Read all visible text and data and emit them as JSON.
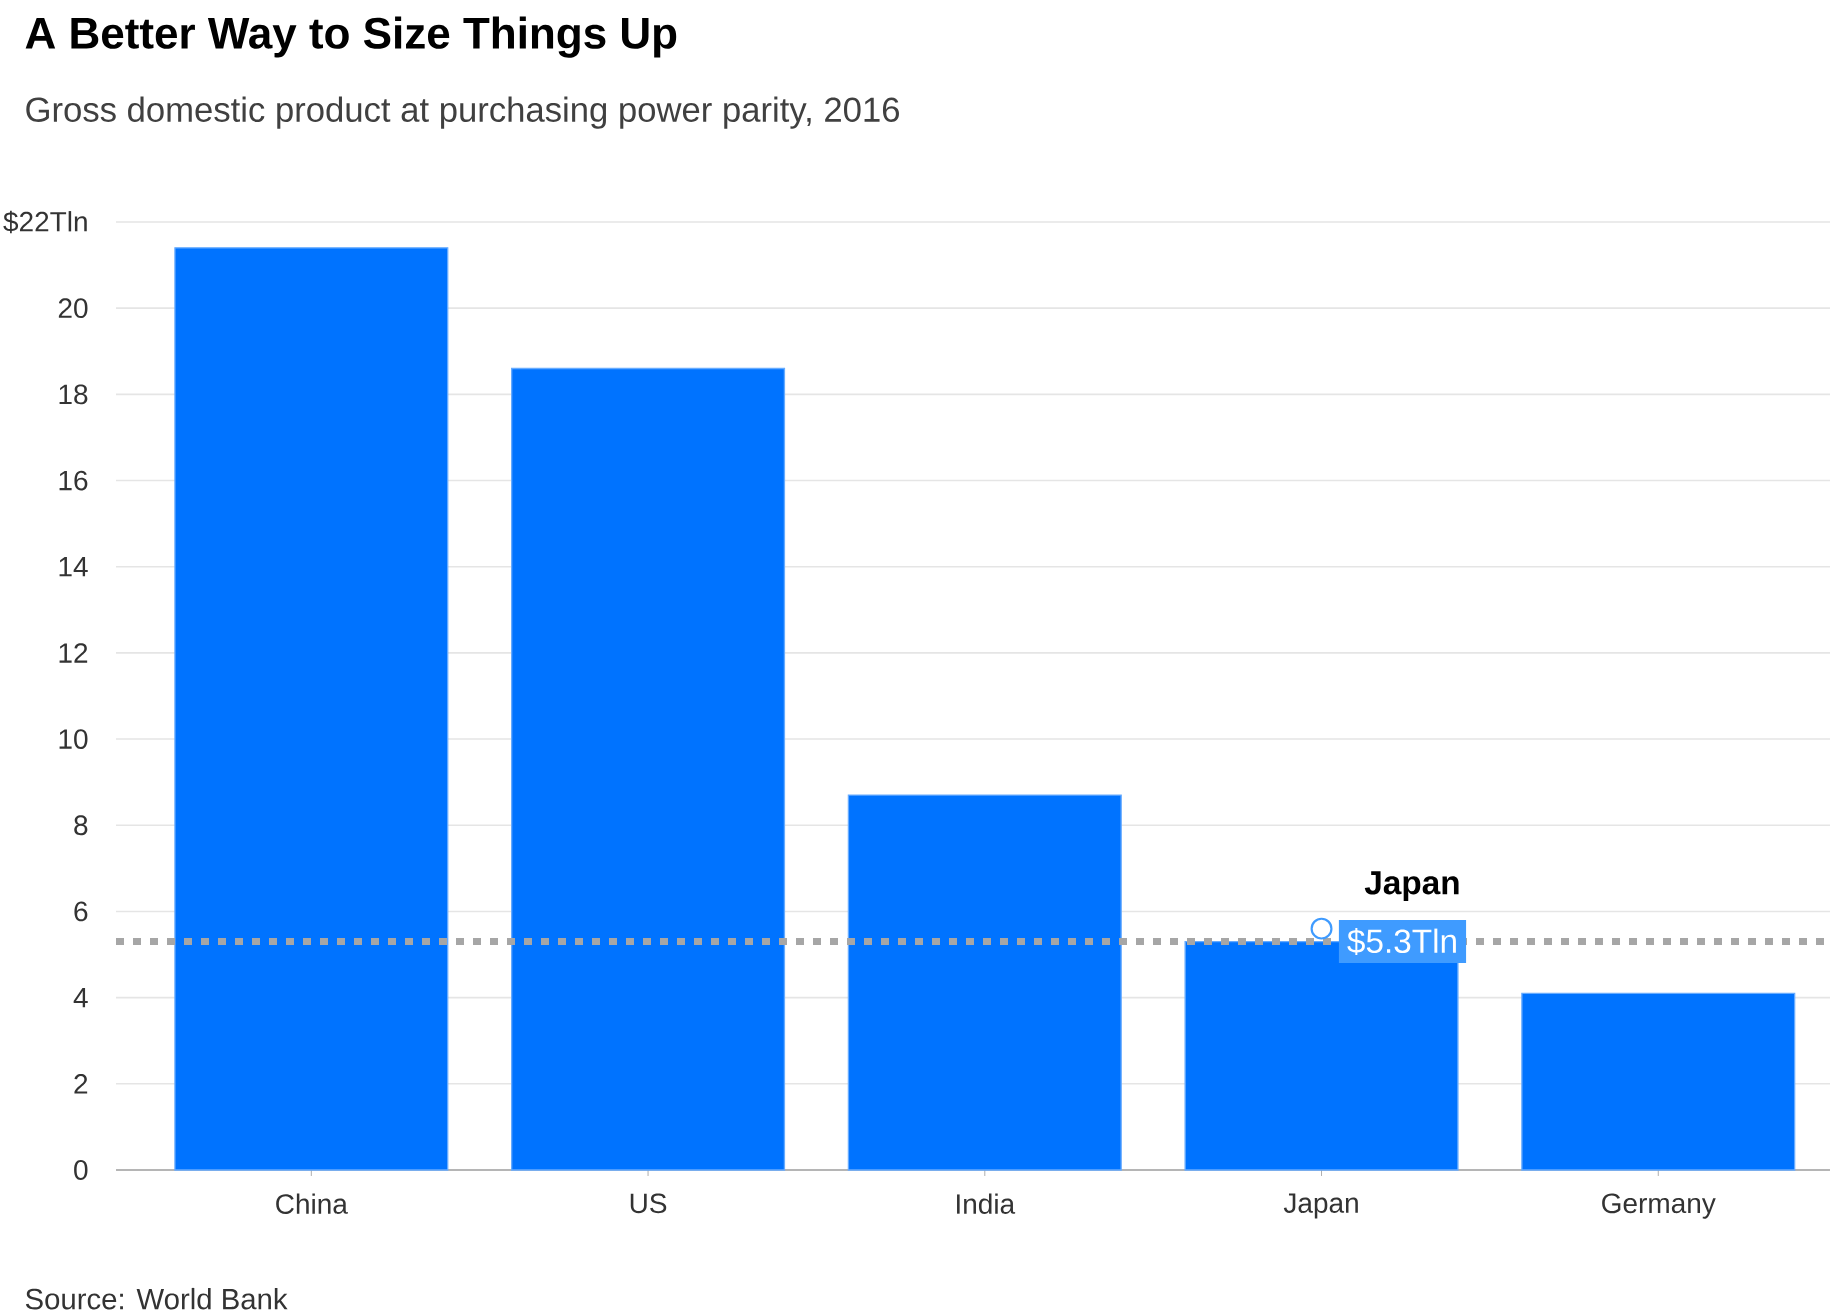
{
  "chart_data": {
    "type": "bar",
    "title": "A Better Way to Size Things Up",
    "subtitle": "Gross domestic product at purchasing power parity, 2016",
    "categories": [
      "China",
      "US",
      "India",
      "Japan",
      "Germany"
    ],
    "values": [
      21.4,
      18.6,
      8.7,
      5.3,
      4.1
    ],
    "color": "#0073ff",
    "ylim": [
      0,
      22
    ],
    "yticks": [
      0,
      2,
      4,
      6,
      8,
      10,
      12,
      14,
      16,
      18,
      20,
      {
        "value": 22,
        "label": "$22Tln"
      }
    ],
    "grid": "y",
    "ref_lines": [
      {
        "axis": "y",
        "value": 5.3,
        "label": "$5.3Tln",
        "color": "#a6a6a6",
        "line_style": "dotted"
      }
    ],
    "annotations": [
      {
        "text": "Japan",
        "x": "Japan",
        "y": 5.3
      },
      "Source: World Bank"
    ]
  }
}
